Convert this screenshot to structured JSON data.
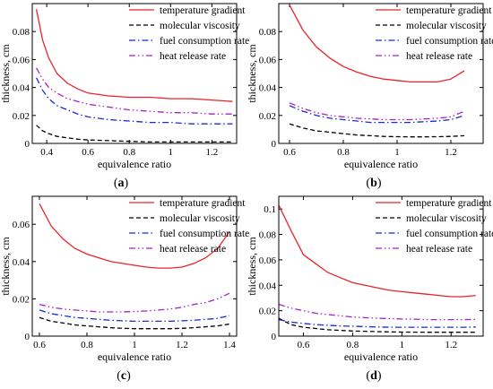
{
  "legend_labels": [
    "temperature gradient",
    "molecular viscosity",
    "fuel consumption rate",
    "heat release rate"
  ],
  "series_colors": {
    "temperature gradient": "#e8242a",
    "molecular viscosity": "#000000",
    "fuel consumption rate": "#1a2bd6",
    "heat release rate": "#a224c8"
  },
  "chart_data": [
    {
      "panel": "a",
      "caption": "a",
      "type": "line",
      "xlabel": "equivalence ratio",
      "ylabel": "thickness, cm",
      "xlim": [
        0.33,
        1.32
      ],
      "ylim": [
        0,
        0.1
      ],
      "xticks": [
        "0.4",
        "0.6",
        "0.8",
        "1",
        "1.2"
      ],
      "yticks": [
        "0",
        "0.02",
        "0.04",
        "0.06",
        "0.08"
      ],
      "legend_position": "top-right",
      "series": [
        {
          "name": "temperature gradient",
          "x": [
            0.35,
            0.38,
            0.41,
            0.45,
            0.5,
            0.55,
            0.6,
            0.7,
            0.8,
            0.9,
            1.0,
            1.1,
            1.2,
            1.3
          ],
          "y": [
            0.096,
            0.074,
            0.061,
            0.05,
            0.043,
            0.039,
            0.036,
            0.034,
            0.033,
            0.033,
            0.032,
            0.032,
            0.031,
            0.03
          ]
        },
        {
          "name": "molecular viscosity",
          "x": [
            0.35,
            0.38,
            0.41,
            0.45,
            0.5,
            0.55,
            0.6,
            0.7,
            0.8,
            0.9,
            1.0,
            1.1,
            1.2,
            1.3
          ],
          "y": [
            0.013,
            0.009,
            0.007,
            0.005,
            0.004,
            0.003,
            0.0025,
            0.002,
            0.0015,
            0.001,
            0.001,
            0.001,
            0.001,
            0.001
          ]
        },
        {
          "name": "fuel consumption rate",
          "x": [
            0.35,
            0.38,
            0.41,
            0.45,
            0.5,
            0.55,
            0.6,
            0.7,
            0.8,
            0.9,
            1.0,
            1.1,
            1.2,
            1.3
          ],
          "y": [
            0.047,
            0.038,
            0.032,
            0.027,
            0.024,
            0.021,
            0.019,
            0.017,
            0.016,
            0.015,
            0.015,
            0.014,
            0.014,
            0.014
          ]
        },
        {
          "name": "heat release rate",
          "x": [
            0.35,
            0.38,
            0.41,
            0.45,
            0.5,
            0.55,
            0.6,
            0.7,
            0.8,
            0.9,
            1.0,
            1.1,
            1.2,
            1.3
          ],
          "y": [
            0.054,
            0.046,
            0.04,
            0.036,
            0.032,
            0.03,
            0.028,
            0.026,
            0.024,
            0.023,
            0.022,
            0.022,
            0.021,
            0.021
          ]
        }
      ]
    },
    {
      "panel": "b",
      "caption": "b",
      "type": "line",
      "xlabel": "equivalence ratio",
      "ylabel": "thickness, cm",
      "xlim": [
        0.56,
        1.32
      ],
      "ylim": [
        0,
        0.1
      ],
      "xticks": [
        "0.6",
        "0.8",
        "1",
        "1.2"
      ],
      "yticks": [
        "0",
        "0.02",
        "0.04",
        "0.06",
        "0.08"
      ],
      "legend_position": "top-right",
      "series": [
        {
          "name": "temperature gradient",
          "x": [
            0.6,
            0.65,
            0.7,
            0.75,
            0.8,
            0.85,
            0.9,
            0.95,
            1.0,
            1.05,
            1.1,
            1.15,
            1.2,
            1.25
          ],
          "y": [
            0.099,
            0.081,
            0.069,
            0.061,
            0.055,
            0.051,
            0.048,
            0.046,
            0.045,
            0.044,
            0.044,
            0.044,
            0.046,
            0.052
          ]
        },
        {
          "name": "molecular viscosity",
          "x": [
            0.6,
            0.65,
            0.7,
            0.75,
            0.8,
            0.85,
            0.9,
            0.95,
            1.0,
            1.05,
            1.1,
            1.15,
            1.2,
            1.25
          ],
          "y": [
            0.014,
            0.011,
            0.009,
            0.008,
            0.007,
            0.006,
            0.0055,
            0.005,
            0.0048,
            0.0047,
            0.0047,
            0.0048,
            0.005,
            0.0055
          ]
        },
        {
          "name": "fuel consumption rate",
          "x": [
            0.6,
            0.65,
            0.7,
            0.75,
            0.8,
            0.85,
            0.9,
            0.95,
            1.0,
            1.05,
            1.1,
            1.15,
            1.2,
            1.25
          ],
          "y": [
            0.027,
            0.023,
            0.02,
            0.018,
            0.017,
            0.016,
            0.015,
            0.015,
            0.015,
            0.015,
            0.0155,
            0.016,
            0.017,
            0.02
          ]
        },
        {
          "name": "heat release rate",
          "x": [
            0.6,
            0.65,
            0.7,
            0.75,
            0.8,
            0.85,
            0.9,
            0.95,
            1.0,
            1.05,
            1.1,
            1.15,
            1.2,
            1.25
          ],
          "y": [
            0.029,
            0.025,
            0.022,
            0.02,
            0.019,
            0.018,
            0.0175,
            0.017,
            0.017,
            0.017,
            0.0175,
            0.018,
            0.019,
            0.023
          ]
        }
      ]
    },
    {
      "panel": "c",
      "caption": "c",
      "type": "line",
      "xlabel": "equivalence ratio",
      "ylabel": "thickness, cm",
      "xlim": [
        0.57,
        1.43
      ],
      "ylim": [
        0,
        0.075
      ],
      "xticks": [
        "0.6",
        "0.8",
        "1",
        "1.2",
        "1.4"
      ],
      "yticks": [
        "0",
        "0.02",
        "0.04",
        "0.06"
      ],
      "legend_position": "top-right",
      "series": [
        {
          "name": "temperature gradient",
          "x": [
            0.6,
            0.65,
            0.7,
            0.75,
            0.8,
            0.85,
            0.9,
            0.95,
            1.0,
            1.05,
            1.1,
            1.15,
            1.2,
            1.25,
            1.3,
            1.35,
            1.4
          ],
          "y": [
            0.071,
            0.059,
            0.052,
            0.047,
            0.044,
            0.042,
            0.04,
            0.039,
            0.038,
            0.037,
            0.0365,
            0.0365,
            0.037,
            0.039,
            0.042,
            0.047,
            0.056
          ]
        },
        {
          "name": "molecular viscosity",
          "x": [
            0.6,
            0.65,
            0.7,
            0.75,
            0.8,
            0.85,
            0.9,
            0.95,
            1.0,
            1.05,
            1.1,
            1.15,
            1.2,
            1.25,
            1.3,
            1.35,
            1.4
          ],
          "y": [
            0.01,
            0.008,
            0.007,
            0.006,
            0.0055,
            0.005,
            0.0045,
            0.0042,
            0.004,
            0.004,
            0.004,
            0.004,
            0.0042,
            0.0045,
            0.005,
            0.0055,
            0.0065
          ]
        },
        {
          "name": "fuel consumption rate",
          "x": [
            0.6,
            0.65,
            0.7,
            0.75,
            0.8,
            0.85,
            0.9,
            0.95,
            1.0,
            1.05,
            1.1,
            1.15,
            1.2,
            1.25,
            1.3,
            1.35,
            1.4
          ],
          "y": [
            0.014,
            0.012,
            0.011,
            0.01,
            0.0095,
            0.009,
            0.0085,
            0.0082,
            0.008,
            0.008,
            0.008,
            0.008,
            0.0082,
            0.0085,
            0.009,
            0.0095,
            0.011
          ]
        },
        {
          "name": "heat release rate",
          "x": [
            0.6,
            0.65,
            0.7,
            0.75,
            0.8,
            0.85,
            0.9,
            0.95,
            1.0,
            1.05,
            1.1,
            1.15,
            1.2,
            1.25,
            1.3,
            1.35,
            1.4
          ],
          "y": [
            0.017,
            0.0155,
            0.0145,
            0.014,
            0.0135,
            0.013,
            0.013,
            0.013,
            0.0132,
            0.0135,
            0.014,
            0.0145,
            0.0155,
            0.017,
            0.018,
            0.02,
            0.023
          ]
        }
      ]
    },
    {
      "panel": "d",
      "caption": "d",
      "type": "line",
      "xlabel": "equivalence ratio",
      "ylabel": "thickness, cm",
      "xlim": [
        0.5,
        1.33
      ],
      "ylim": [
        0,
        0.11
      ],
      "xticks": [
        "0.6",
        "0.8",
        "1",
        "1.2"
      ],
      "yticks": [
        "0",
        "0.02",
        "0.04",
        "0.06",
        "0.08",
        "0.1"
      ],
      "legend_position": "top-right",
      "series": [
        {
          "name": "temperature gradient",
          "x": [
            0.5,
            0.55,
            0.6,
            0.65,
            0.7,
            0.75,
            0.8,
            0.85,
            0.9,
            0.95,
            1.0,
            1.05,
            1.1,
            1.15,
            1.2,
            1.25,
            1.3
          ],
          "y": [
            0.103,
            0.083,
            0.064,
            0.057,
            0.05,
            0.046,
            0.042,
            0.04,
            0.038,
            0.036,
            0.035,
            0.034,
            0.033,
            0.032,
            0.031,
            0.031,
            0.032
          ]
        },
        {
          "name": "molecular viscosity",
          "x": [
            0.5,
            0.55,
            0.6,
            0.65,
            0.7,
            0.75,
            0.8,
            0.85,
            0.9,
            0.95,
            1.0,
            1.05,
            1.1,
            1.15,
            1.2,
            1.25,
            1.3
          ],
          "y": [
            0.014,
            0.009,
            0.007,
            0.006,
            0.005,
            0.0045,
            0.004,
            0.0038,
            0.0035,
            0.0033,
            0.0032,
            0.0031,
            0.003,
            0.003,
            0.003,
            0.003,
            0.003
          ]
        },
        {
          "name": "fuel consumption rate",
          "x": [
            0.5,
            0.55,
            0.6,
            0.65,
            0.7,
            0.75,
            0.8,
            0.85,
            0.9,
            0.95,
            1.0,
            1.05,
            1.1,
            1.15,
            1.2,
            1.25,
            1.3
          ],
          "y": [
            0.013,
            0.011,
            0.01,
            0.009,
            0.0085,
            0.008,
            0.0078,
            0.0075,
            0.0072,
            0.007,
            0.007,
            0.007,
            0.007,
            0.007,
            0.007,
            0.007,
            0.0072
          ]
        },
        {
          "name": "heat release rate",
          "x": [
            0.5,
            0.55,
            0.6,
            0.65,
            0.7,
            0.75,
            0.8,
            0.85,
            0.9,
            0.95,
            1.0,
            1.05,
            1.1,
            1.15,
            1.2,
            1.25,
            1.3
          ],
          "y": [
            0.025,
            0.022,
            0.02,
            0.018,
            0.017,
            0.016,
            0.015,
            0.0145,
            0.014,
            0.0138,
            0.0135,
            0.0133,
            0.013,
            0.013,
            0.013,
            0.013,
            0.0132
          ]
        }
      ]
    }
  ]
}
